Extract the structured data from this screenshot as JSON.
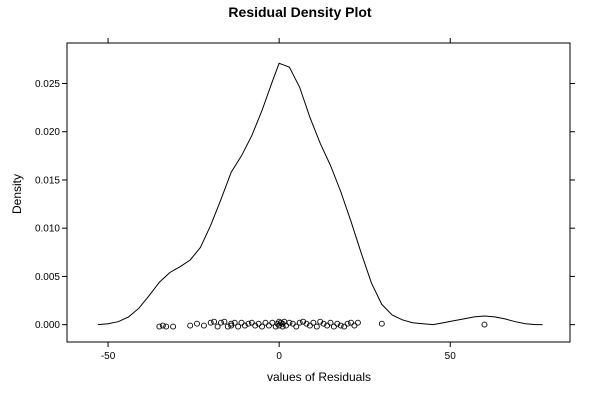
{
  "chart_data": {
    "type": "line",
    "title": "Residual Density Plot",
    "xlabel": "values of Residuals",
    "ylabel": "Density",
    "xlim": [
      -62,
      85
    ],
    "ylim": [
      -0.0018,
      0.0292
    ],
    "x_ticks": [
      -50,
      0,
      50
    ],
    "x_tick_labels": [
      "-50",
      "0",
      "50"
    ],
    "y_ticks": [
      0.0,
      0.005,
      0.01,
      0.015,
      0.02,
      0.025
    ],
    "y_tick_labels": [
      "0.000",
      "0.005",
      "0.010",
      "0.015",
      "0.020",
      "0.025"
    ],
    "grid": false,
    "series": [
      {
        "kind": "density-line",
        "x": [
          -53,
          -50,
          -47,
          -44,
          -41,
          -38,
          -35,
          -32,
          -29,
          -26,
          -23,
          -20,
          -17,
          -14,
          -11,
          -8,
          -5,
          -2,
          0,
          1.5,
          3,
          6,
          9,
          12,
          15,
          18,
          21,
          24,
          27,
          30,
          33,
          36,
          39,
          42,
          45,
          48,
          51,
          54,
          57,
          60,
          63,
          66,
          69,
          72,
          75,
          77
        ],
        "y": [
          0.0,
          0.0001,
          0.0003,
          0.0008,
          0.0017,
          0.003,
          0.0044,
          0.0054,
          0.006,
          0.0067,
          0.008,
          0.0103,
          0.013,
          0.0158,
          0.0175,
          0.0196,
          0.0222,
          0.0252,
          0.0271,
          0.0269,
          0.0267,
          0.0246,
          0.0215,
          0.0188,
          0.0165,
          0.0138,
          0.0107,
          0.0074,
          0.0043,
          0.0021,
          0.001,
          0.0005,
          0.0002,
          0.0001,
          0.0,
          0.0002,
          0.0004,
          0.0006,
          0.0008,
          0.0009,
          0.0008,
          0.0006,
          0.0003,
          0.0001,
          0.0,
          0.0
        ]
      },
      {
        "kind": "rug-points",
        "x": [
          -35,
          -34,
          -33,
          -31,
          -26,
          -24,
          -22,
          -20,
          -19,
          -18,
          -17,
          -16,
          -15,
          -14,
          -14,
          -13,
          -12,
          -11,
          -10,
          -9,
          -8,
          -7,
          -6,
          -5,
          -4,
          -3,
          -2,
          -1,
          -0.5,
          0,
          0,
          0.5,
          1,
          1,
          1.5,
          2,
          3,
          4,
          5,
          6,
          7,
          8,
          9,
          10,
          11,
          12,
          13,
          14,
          15,
          16,
          17,
          18,
          19,
          20,
          21,
          22,
          23,
          30,
          60
        ],
        "y": [
          -0.0002,
          -0.0001,
          -0.0002,
          -0.0002,
          -0.0001,
          0.0001,
          -0.0001,
          0.0002,
          0.0003,
          -0.0002,
          0.0002,
          0.0003,
          -0.0002,
          0.0001,
          -0.0001,
          0.0002,
          -0.0002,
          0.0002,
          -0.0001,
          0.0001,
          0.0002,
          -0.0001,
          0.0001,
          -0.0002,
          0.0002,
          -0.0001,
          0.0002,
          -0.0002,
          0.0001,
          0.0003,
          -0.0001,
          0.0002,
          -0.0002,
          0.0001,
          0.0003,
          -0.0001,
          0.0002,
          0.0001,
          -0.0002,
          0.0002,
          0.0003,
          0.0001,
          -0.0001,
          0.0002,
          -0.0002,
          0.0003,
          0.0001,
          -0.0001,
          0.0002,
          -0.0002,
          0.0001,
          -0.0001,
          -0.0002,
          0.0001,
          0.0002,
          -0.0001,
          0.0002,
          0.0001,
          0.0
        ]
      }
    ]
  }
}
